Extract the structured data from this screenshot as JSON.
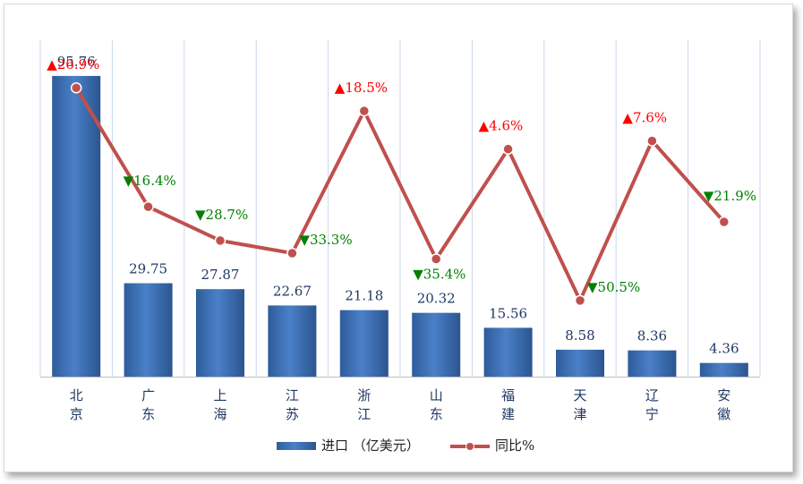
{
  "chart_data": {
    "type": "bar",
    "categories": [
      "北京",
      "广东",
      "上海",
      "江苏",
      "浙江",
      "山东",
      "福建",
      "天津",
      "辽宁",
      "安徽"
    ],
    "series": [
      {
        "name": "进口 （亿美元）",
        "type": "bar",
        "axis": "left",
        "values": [
          95.76,
          29.75,
          27.87,
          22.67,
          21.18,
          20.32,
          15.56,
          8.58,
          8.36,
          4.36
        ],
        "labels": [
          "95.76",
          "29.75",
          "27.87",
          "22.67",
          "21.18",
          "20.32",
          "15.56",
          "8.58",
          "8.36",
          "4.36"
        ],
        "color": "#3b6fb5"
      },
      {
        "name": "同比%",
        "type": "line",
        "axis": "right",
        "values": [
          26.9,
          -16.4,
          -28.7,
          -33.3,
          18.5,
          -35.4,
          4.6,
          -50.5,
          7.6,
          -21.9
        ],
        "labels": [
          "26.9%",
          "16.4%",
          "28.7%",
          "33.3%",
          "18.5%",
          "35.4%",
          "4.6%",
          "50.5%",
          "7.6%",
          "21.9%"
        ],
        "color": "#c0504d"
      }
    ],
    "ylim_left": [
      0,
      200
    ],
    "ylim_right": [
      -60,
      40
    ],
    "grid": "vertical",
    "legend": "bottom-center",
    "colors": {
      "up": "#ff0000",
      "down": "#008000"
    },
    "markers": {
      "up": "▲",
      "down": "▼"
    }
  }
}
